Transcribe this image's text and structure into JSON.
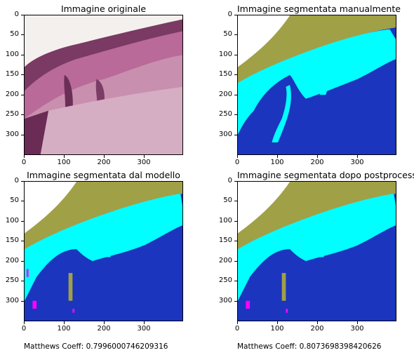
{
  "chart_data": {
    "type": "heatmap",
    "x_ticks": [
      "0",
      "100",
      "200",
      "300"
    ],
    "y_ticks": [
      "0",
      "50",
      "100",
      "150",
      "200",
      "250",
      "300"
    ],
    "x_tick_values": [
      0,
      100,
      200,
      300
    ],
    "y_tick_values": [
      0,
      50,
      100,
      150,
      200,
      250,
      300
    ],
    "xlim": [
      0,
      395
    ],
    "ylim": [
      350,
      0
    ],
    "colors": {
      "background_class": "#1b35be",
      "epidermis_class": "#00ffff",
      "stratum_class": "#a0a046",
      "error_class": "#ff00ff",
      "tissue": "#a8527f",
      "light": "#f3f0ed"
    },
    "panels": [
      {
        "title": "Immagine originale"
      },
      {
        "title": "Immagine segmentata manualmente"
      },
      {
        "title": "Immagine segmentata dal modello"
      },
      {
        "title": "Immagine segmentata dopo postprocessing"
      }
    ]
  },
  "captions": {
    "model": "Matthews Coeff: 0.7996000746209316",
    "postprocessing": "Matthews Coeff: 0.8073698398420626"
  }
}
